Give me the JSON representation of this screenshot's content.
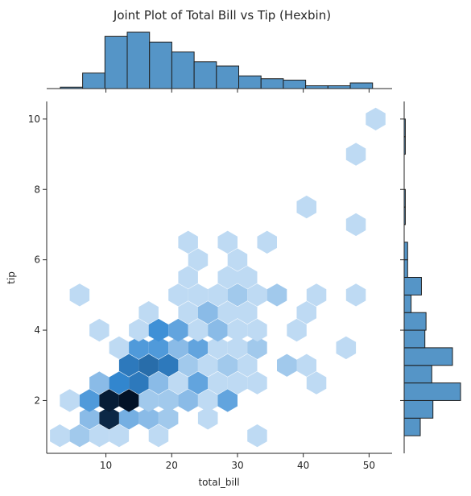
{
  "chart_data": {
    "type": "hexbin",
    "title": "Joint Plot of Total Bill vs Tip (Hexbin)",
    "xlabel": "total_bill",
    "ylabel": "tip",
    "xlim": [
      1.0,
      53.5
    ],
    "ylim": [
      0.5,
      10.5
    ],
    "xticks": [
      10,
      20,
      30,
      40,
      50
    ],
    "yticks": [
      2,
      4,
      6,
      8,
      10
    ],
    "hexbins": [
      {
        "x": 3.0,
        "y": 1.0,
        "count": 1
      },
      {
        "x": 6.0,
        "y": 1.0,
        "count": 2
      },
      {
        "x": 9.0,
        "y": 1.0,
        "count": 1
      },
      {
        "x": 12.0,
        "y": 1.0,
        "count": 1
      },
      {
        "x": 18.0,
        "y": 1.0,
        "count": 1
      },
      {
        "x": 33.0,
        "y": 1.0,
        "count": 1
      },
      {
        "x": 7.5,
        "y": 1.5,
        "count": 3
      },
      {
        "x": 10.5,
        "y": 1.5,
        "count": 16
      },
      {
        "x": 13.5,
        "y": 1.5,
        "count": 4
      },
      {
        "x": 16.5,
        "y": 1.5,
        "count": 3
      },
      {
        "x": 19.5,
        "y": 1.5,
        "count": 2
      },
      {
        "x": 25.5,
        "y": 1.5,
        "count": 1
      },
      {
        "x": 4.5,
        "y": 2.0,
        "count": 1
      },
      {
        "x": 7.5,
        "y": 2.0,
        "count": 6
      },
      {
        "x": 10.5,
        "y": 2.0,
        "count": 17
      },
      {
        "x": 13.5,
        "y": 2.0,
        "count": 18
      },
      {
        "x": 16.5,
        "y": 2.0,
        "count": 2
      },
      {
        "x": 19.5,
        "y": 2.0,
        "count": 2
      },
      {
        "x": 22.5,
        "y": 2.0,
        "count": 3
      },
      {
        "x": 25.5,
        "y": 2.0,
        "count": 1
      },
      {
        "x": 28.5,
        "y": 2.0,
        "count": 5
      },
      {
        "x": 9.0,
        "y": 2.5,
        "count": 3
      },
      {
        "x": 12.0,
        "y": 2.5,
        "count": 8
      },
      {
        "x": 15.0,
        "y": 2.5,
        "count": 9
      },
      {
        "x": 18.0,
        "y": 2.5,
        "count": 3
      },
      {
        "x": 21.0,
        "y": 2.5,
        "count": 1
      },
      {
        "x": 24.0,
        "y": 2.5,
        "count": 5
      },
      {
        "x": 27.0,
        "y": 2.5,
        "count": 1
      },
      {
        "x": 30.0,
        "y": 2.5,
        "count": 1
      },
      {
        "x": 33.0,
        "y": 2.5,
        "count": 1
      },
      {
        "x": 42.0,
        "y": 2.5,
        "count": 1
      },
      {
        "x": 13.5,
        "y": 3.0,
        "count": 9
      },
      {
        "x": 16.5,
        "y": 3.0,
        "count": 10
      },
      {
        "x": 19.5,
        "y": 3.0,
        "count": 9
      },
      {
        "x": 22.5,
        "y": 3.0,
        "count": 2
      },
      {
        "x": 25.5,
        "y": 3.0,
        "count": 1
      },
      {
        "x": 28.5,
        "y": 3.0,
        "count": 2
      },
      {
        "x": 31.5,
        "y": 3.0,
        "count": 1
      },
      {
        "x": 37.5,
        "y": 3.0,
        "count": 2
      },
      {
        "x": 40.5,
        "y": 3.0,
        "count": 1
      },
      {
        "x": 12.0,
        "y": 3.5,
        "count": 1
      },
      {
        "x": 15.0,
        "y": 3.5,
        "count": 6
      },
      {
        "x": 18.0,
        "y": 3.5,
        "count": 6
      },
      {
        "x": 21.0,
        "y": 3.5,
        "count": 3
      },
      {
        "x": 24.0,
        "y": 3.5,
        "count": 5
      },
      {
        "x": 27.0,
        "y": 3.5,
        "count": 1
      },
      {
        "x": 30.0,
        "y": 3.5,
        "count": 1
      },
      {
        "x": 33.0,
        "y": 3.5,
        "count": 2
      },
      {
        "x": 46.5,
        "y": 3.5,
        "count": 1
      },
      {
        "x": 9.0,
        "y": 4.0,
        "count": 1
      },
      {
        "x": 15.0,
        "y": 4.0,
        "count": 1
      },
      {
        "x": 18.0,
        "y": 4.0,
        "count": 7
      },
      {
        "x": 21.0,
        "y": 4.0,
        "count": 5
      },
      {
        "x": 24.0,
        "y": 4.0,
        "count": 1
      },
      {
        "x": 27.0,
        "y": 4.0,
        "count": 3
      },
      {
        "x": 30.0,
        "y": 4.0,
        "count": 1
      },
      {
        "x": 33.0,
        "y": 4.0,
        "count": 1
      },
      {
        "x": 39.0,
        "y": 4.0,
        "count": 1
      },
      {
        "x": 16.5,
        "y": 4.5,
        "count": 1
      },
      {
        "x": 22.5,
        "y": 4.5,
        "count": 1
      },
      {
        "x": 25.5,
        "y": 4.5,
        "count": 3
      },
      {
        "x": 28.5,
        "y": 4.5,
        "count": 1
      },
      {
        "x": 31.5,
        "y": 4.5,
        "count": 1
      },
      {
        "x": 40.5,
        "y": 4.5,
        "count": 1
      },
      {
        "x": 6.0,
        "y": 5.0,
        "count": 1
      },
      {
        "x": 21.0,
        "y": 5.0,
        "count": 1
      },
      {
        "x": 24.0,
        "y": 5.0,
        "count": 1
      },
      {
        "x": 27.0,
        "y": 5.0,
        "count": 1
      },
      {
        "x": 30.0,
        "y": 5.0,
        "count": 2
      },
      {
        "x": 33.0,
        "y": 5.0,
        "count": 1
      },
      {
        "x": 36.0,
        "y": 5.0,
        "count": 2
      },
      {
        "x": 42.0,
        "y": 5.0,
        "count": 1
      },
      {
        "x": 48.0,
        "y": 5.0,
        "count": 1
      },
      {
        "x": 22.5,
        "y": 5.5,
        "count": 1
      },
      {
        "x": 28.5,
        "y": 5.5,
        "count": 1
      },
      {
        "x": 31.5,
        "y": 5.5,
        "count": 1
      },
      {
        "x": 24.0,
        "y": 6.0,
        "count": 1
      },
      {
        "x": 30.0,
        "y": 6.0,
        "count": 1
      },
      {
        "x": 22.5,
        "y": 6.5,
        "count": 1
      },
      {
        "x": 28.5,
        "y": 6.5,
        "count": 1
      },
      {
        "x": 34.5,
        "y": 6.5,
        "count": 1
      },
      {
        "x": 48.0,
        "y": 7.0,
        "count": 1
      },
      {
        "x": 40.5,
        "y": 7.5,
        "count": 1
      },
      {
        "x": 48.0,
        "y": 9.0,
        "count": 1
      },
      {
        "x": 51.0,
        "y": 10.0,
        "count": 1
      }
    ],
    "marginal_x": {
      "bin_edges": [
        3.07,
        6.46,
        9.85,
        13.24,
        16.63,
        20.02,
        23.41,
        26.8,
        30.19,
        33.58,
        36.97,
        40.36,
        43.75,
        47.14,
        50.53
      ],
      "counts": [
        1,
        11,
        37,
        40,
        33,
        26,
        19,
        16,
        9,
        7,
        6,
        2,
        2,
        4
      ]
    },
    "marginal_y": {
      "bin_edges": [
        1.0,
        1.5,
        2.0,
        2.5,
        3.0,
        3.5,
        4.0,
        4.5,
        5.0,
        5.5,
        6.0,
        6.5,
        7.0,
        7.5,
        8.0,
        8.5,
        9.0,
        9.5,
        10.0
      ],
      "counts": [
        14,
        25,
        49,
        24,
        42,
        18,
        19,
        6,
        15,
        3,
        3,
        0,
        1,
        1,
        0,
        0,
        1,
        1
      ]
    }
  }
}
